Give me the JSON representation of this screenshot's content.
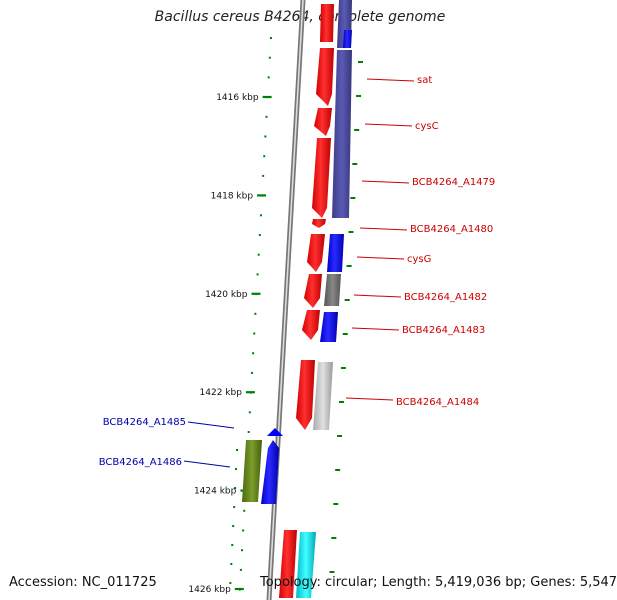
{
  "map": {
    "title": "Bacillus cereus B4264, complete genome",
    "accession": "Accession: NC_011725",
    "summary": "Topology: circular; Length: 5,419,036 bp; Genes: 5,547",
    "colors": {
      "forward_gene": "#ff0000",
      "reverse_gene": "#0000ff",
      "label_forward": "#cc0000",
      "label_reverse": "#0000aa",
      "tick": "#008000",
      "backbone": "#888888"
    },
    "scale_ticks": [
      {
        "label": "1416 kbp",
        "kbp": 1416
      },
      {
        "label": "1418 kbp",
        "kbp": 1418
      },
      {
        "label": "1420 kbp",
        "kbp": 1420
      },
      {
        "label": "1422 kbp",
        "kbp": 1422
      },
      {
        "label": "1424 kbp",
        "kbp": 1424
      },
      {
        "label": "1426 kbp",
        "kbp": 1426
      }
    ],
    "genes_right": [
      {
        "name": "sat"
      },
      {
        "name": "cysC"
      },
      {
        "name": "BCB4264_A1479"
      },
      {
        "name": "BCB4264_A1480"
      },
      {
        "name": "cysG"
      },
      {
        "name": "BCB4264_A1482"
      },
      {
        "name": "BCB4264_A1483"
      },
      {
        "name": "BCB4264_A1484"
      }
    ],
    "genes_left": [
      {
        "name": "BCB4264_A1485"
      },
      {
        "name": "BCB4264_A1486"
      }
    ]
  }
}
